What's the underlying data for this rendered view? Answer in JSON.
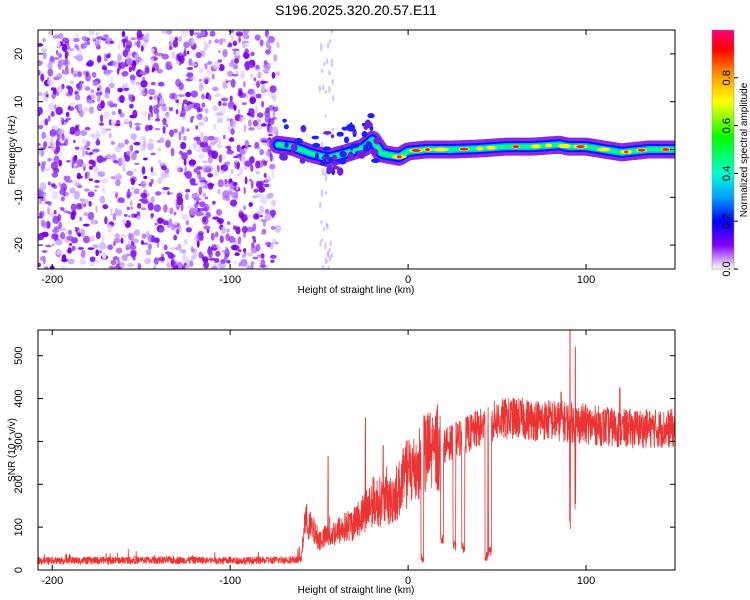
{
  "title": "S196.2025.320.20.57.E11",
  "chart_data": [
    {
      "type": "heatmap",
      "name": "spectrogram",
      "xlabel": "Height of straight line (km)",
      "ylabel": "Frequency (Hz)",
      "xlim": [
        -208,
        150
      ],
      "ylim": [
        -25,
        25
      ],
      "xticks": [
        -200,
        -100,
        0,
        100
      ],
      "yticks": [
        -20,
        -10,
        0,
        10,
        20
      ],
      "noise_region_x": [
        -208,
        -73
      ],
      "tone_track": [
        [
          -73,
          1.0
        ],
        [
          -65,
          0.6
        ],
        [
          -55,
          -0.8
        ],
        [
          -45,
          -1.8
        ],
        [
          -35,
          -0.8
        ],
        [
          -25,
          0.4
        ],
        [
          -20,
          2.0
        ],
        [
          -15,
          -0.8
        ],
        [
          -10,
          -1.2
        ],
        [
          -5,
          -1.5
        ],
        [
          0,
          -0.4
        ],
        [
          10,
          0.0
        ],
        [
          25,
          0.0
        ],
        [
          40,
          0.2
        ],
        [
          55,
          0.6
        ],
        [
          70,
          0.6
        ],
        [
          85,
          1.0
        ],
        [
          90,
          0.6
        ],
        [
          100,
          0.6
        ],
        [
          110,
          0.0
        ],
        [
          120,
          -0.6
        ],
        [
          135,
          0.0
        ],
        [
          150,
          0.0
        ]
      ],
      "colorbar": {
        "label": "Normalized spectral amplitude",
        "range": [
          0.0,
          1.0
        ],
        "ticks": [
          0.0,
          0.2,
          0.4,
          0.6,
          0.8
        ],
        "tick_labels": [
          "0.0",
          "0.2",
          "0.4",
          "0.6",
          "0.8"
        ]
      }
    },
    {
      "type": "line",
      "name": "snr",
      "xlabel": "Height of straight line (km)",
      "ylabel": "SNR (10 * v/v)",
      "xlim": [
        -208,
        150
      ],
      "ylim": [
        0,
        560
      ],
      "xticks": [
        -200,
        -100,
        0,
        100
      ],
      "yticks": [
        0,
        100,
        200,
        300,
        400,
        500
      ],
      "color": "#ee3333",
      "profile": {
        "x": [
          -208,
          -180,
          -150,
          -120,
          -100,
          -80,
          -60,
          -58,
          -50,
          -40,
          -30,
          -20,
          -10,
          -5,
          0,
          5,
          10,
          20,
          30,
          40,
          50,
          60,
          70,
          80,
          90,
          100,
          110,
          120,
          130,
          140,
          150
        ],
        "y": [
          22,
          22,
          23,
          23,
          22,
          22,
          25,
          120,
          70,
          90,
          110,
          160,
          160,
          190,
          230,
          240,
          270,
          290,
          310,
          330,
          350,
          355,
          350,
          350,
          345,
          340,
          335,
          330,
          330,
          330,
          330
        ]
      },
      "dropouts": [
        {
          "x": 8,
          "y": 15
        },
        {
          "x": 19,
          "y": 60
        },
        {
          "x": 26,
          "y": 45
        },
        {
          "x": 31,
          "y": 40
        },
        {
          "x": 44,
          "y": 20
        },
        {
          "x": 46,
          "y": 30
        }
      ],
      "spikes": [
        {
          "x": -45,
          "y": 265
        },
        {
          "x": -24,
          "y": 355
        },
        {
          "x": -14,
          "y": 290
        },
        {
          "x": 1,
          "y": 270
        },
        {
          "x": 86,
          "y": 415
        },
        {
          "x": 91,
          "y": 560
        },
        {
          "x": 94,
          "y": 520
        },
        {
          "x": 119,
          "y": 425
        }
      ],
      "deep_dips": [
        {
          "x": 91,
          "y": 95
        },
        {
          "x": 94,
          "y": 140
        }
      ]
    }
  ]
}
